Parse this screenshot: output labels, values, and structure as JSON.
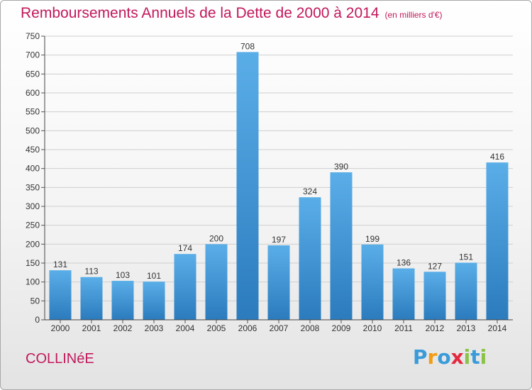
{
  "title": "Remboursements Annuels de la Dette de 2000 à 2014",
  "unit_note": "(en milliers d'€)",
  "commune": "COLLINéE",
  "logo": {
    "text": "Proxiti",
    "letters": [
      {
        "ch": "P",
        "color": "#3a9bd9"
      },
      {
        "ch": "r",
        "color": "#f39c12"
      },
      {
        "ch": "o",
        "color": "#3a9bd9"
      },
      {
        "ch": "x",
        "color": "#e5283e"
      },
      {
        "ch": "i",
        "color": "#8bc34a"
      },
      {
        "ch": "t",
        "color": "#3a9bd9"
      },
      {
        "ch": "i",
        "color": "#8bc34a"
      }
    ]
  },
  "chart_data": {
    "type": "bar",
    "categories": [
      "2000",
      "2001",
      "2002",
      "2003",
      "2004",
      "2005",
      "2006",
      "2007",
      "2008",
      "2009",
      "2010",
      "2011",
      "2012",
      "2013",
      "2014"
    ],
    "values": [
      131,
      113,
      103,
      101,
      174,
      200,
      708,
      197,
      324,
      390,
      199,
      136,
      127,
      151,
      416
    ],
    "ylim": [
      0,
      750
    ],
    "yticks": [
      0,
      50,
      100,
      150,
      200,
      250,
      300,
      350,
      400,
      450,
      500,
      550,
      600,
      650,
      700,
      750
    ],
    "grid": true,
    "bar_color_top": "#5aaee8",
    "bar_color_bottom": "#2b7bbd",
    "grid_color": "#cfcfcf"
  }
}
